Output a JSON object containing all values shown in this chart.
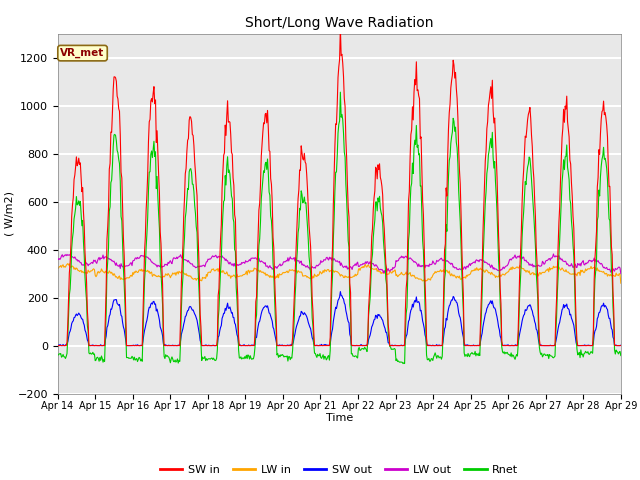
{
  "title": "Short/Long Wave Radiation",
  "xlabel": "Time",
  "ylabel": "( W/m2)",
  "ylim": [
    -200,
    1300
  ],
  "yticks": [
    -200,
    0,
    200,
    400,
    600,
    800,
    1000,
    1200
  ],
  "date_labels": [
    "Apr 14",
    "Apr 15",
    "Apr 16",
    "Apr 17",
    "Apr 18",
    "Apr 19",
    "Apr 20",
    "Apr 21",
    "Apr 22",
    "Apr 23",
    "Apr 24",
    "Apr 25",
    "Apr 26",
    "Apr 27",
    "Apr 28",
    "Apr 29"
  ],
  "station_label": "VR_met",
  "colors": {
    "SW_in": "#ff0000",
    "LW_in": "#ffa500",
    "SW_out": "#0000ff",
    "LW_out": "#cc00cc",
    "Rnet": "#00cc00"
  },
  "legend_labels": [
    "SW in",
    "LW in",
    "SW out",
    "LW out",
    "Rnet"
  ],
  "fig_bg_color": "#ffffff",
  "plot_bg_color": "#e8e8e8"
}
